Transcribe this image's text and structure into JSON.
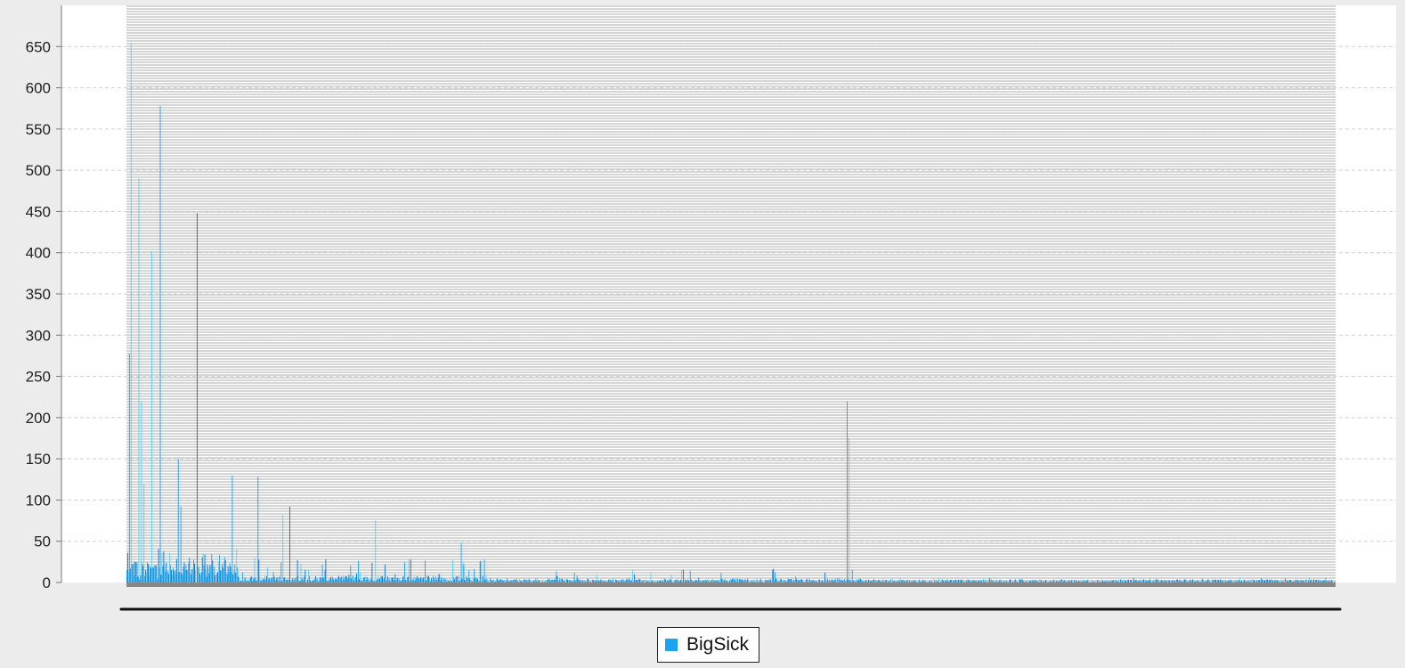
{
  "chart_data": {
    "type": "bar",
    "title": "",
    "xlabel": "",
    "ylabel": "",
    "ylim": [
      0,
      700
    ],
    "yticks": [
      0,
      50,
      100,
      150,
      200,
      250,
      300,
      350,
      400,
      450,
      500,
      550,
      600,
      650
    ],
    "ytick_labels": [
      "0",
      "50",
      "100",
      "150",
      "200",
      "250",
      "300",
      "350",
      "400",
      "450",
      "500",
      "550",
      "600",
      "650"
    ],
    "grid": true,
    "legend_position": "bottom-center",
    "category_count": 1410,
    "series": [
      {
        "name": "BigSick",
        "color": "#1aa3f0",
        "notable_values": [
          {
            "index": 3,
            "value": 278
          },
          {
            "index": 5,
            "value": 655
          },
          {
            "index": 14,
            "value": 490
          },
          {
            "index": 17,
            "value": 220
          },
          {
            "index": 20,
            "value": 120
          },
          {
            "index": 29,
            "value": 402
          },
          {
            "index": 39,
            "value": 578
          },
          {
            "index": 60,
            "value": 150
          },
          {
            "index": 63,
            "value": 92
          },
          {
            "index": 82,
            "value": 448
          },
          {
            "index": 123,
            "value": 130
          },
          {
            "index": 153,
            "value": 128
          },
          {
            "index": 182,
            "value": 82
          },
          {
            "index": 190,
            "value": 92
          },
          {
            "index": 290,
            "value": 75
          },
          {
            "index": 390,
            "value": 48
          },
          {
            "index": 840,
            "value": 220
          },
          {
            "index": 842,
            "value": 175
          }
        ],
        "tail_typical_max": 10
      }
    ],
    "legend": [
      "BigSick"
    ]
  },
  "colors": {
    "window_background": "#ececec",
    "plot_background": "#ffffff",
    "band_color": "#c8c8c8",
    "series_color": "#1aa3f0",
    "series_color_dark": "#0a6fd1",
    "series_color_light": "#4fd2f5",
    "grid_color": "#cfcfcf",
    "axis_color": "#777777"
  }
}
